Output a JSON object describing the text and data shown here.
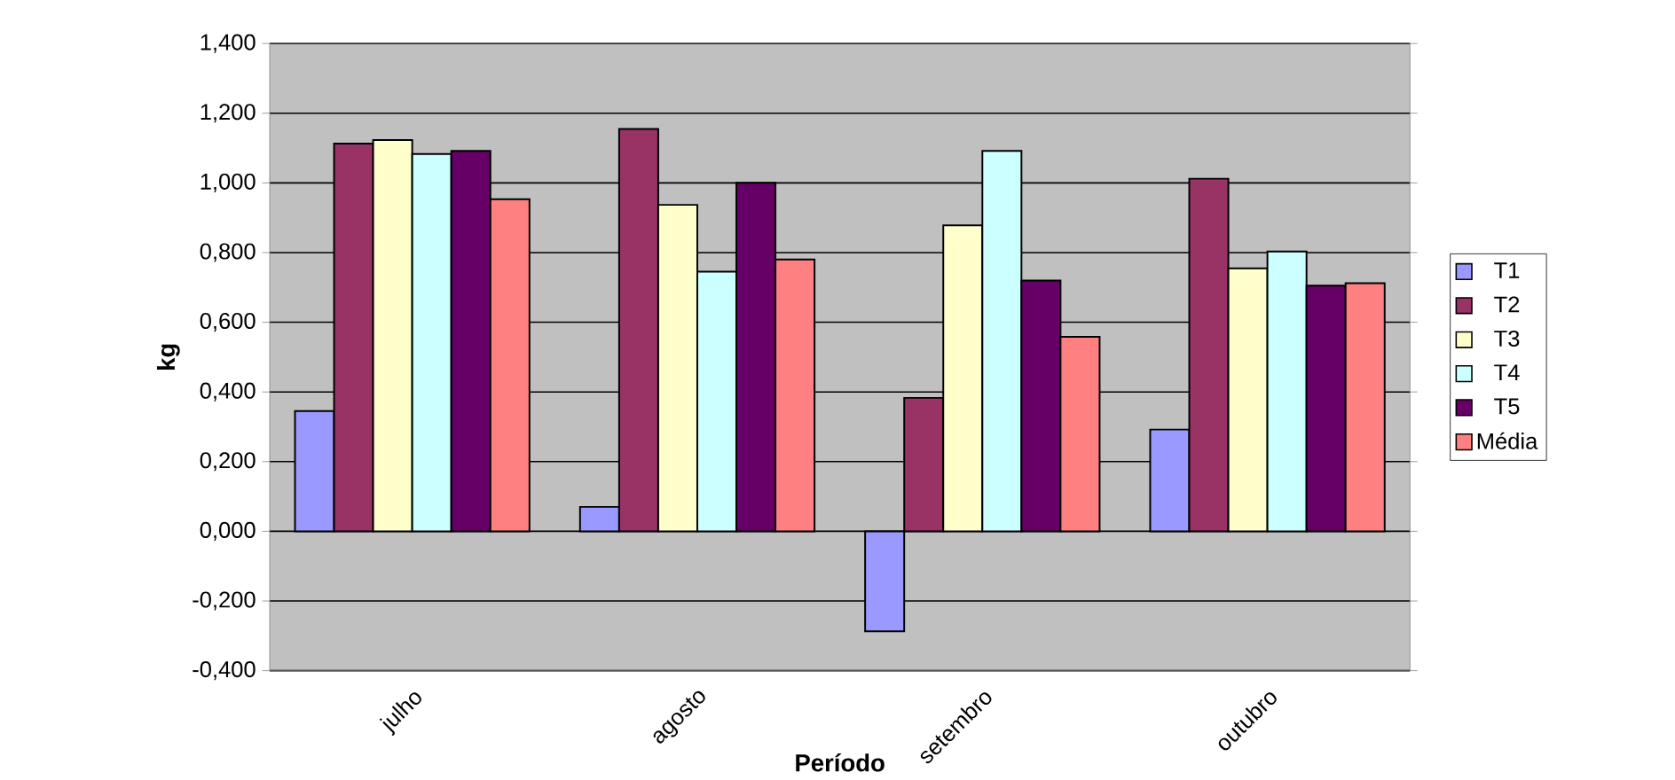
{
  "chart_data": {
    "type": "bar",
    "xlabel": "Período",
    "ylabel": "kg",
    "categories": [
      "julho",
      "agosto",
      "setembro",
      "outubro"
    ],
    "series": [
      {
        "name": "T1",
        "color": "#9999ff",
        "values": [
          0.345,
          0.07,
          -0.287,
          0.292
        ]
      },
      {
        "name": "T2",
        "color": "#993366",
        "values": [
          1.113,
          1.155,
          0.383,
          1.012
        ]
      },
      {
        "name": "T3",
        "color": "#ffffcc",
        "values": [
          1.123,
          0.937,
          0.878,
          0.755
        ]
      },
      {
        "name": "T4",
        "color": "#ccffff",
        "values": [
          1.083,
          0.745,
          1.092,
          0.803
        ]
      },
      {
        "name": "T5",
        "color": "#660066",
        "values": [
          1.092,
          1.0,
          0.72,
          0.705
        ]
      },
      {
        "name": "Média",
        "color": "#ff8080",
        "values": [
          0.953,
          0.78,
          0.558,
          0.712
        ]
      }
    ],
    "ylim": [
      -0.4,
      1.4
    ],
    "yticks": [
      {
        "value": -0.4,
        "label": "-0,400"
      },
      {
        "value": -0.2,
        "label": "-0,200"
      },
      {
        "value": 0,
        "label": "0,000"
      },
      {
        "value": 0.2,
        "label": "0,200"
      },
      {
        "value": 0.4,
        "label": "0,400"
      },
      {
        "value": 0.6,
        "label": "0,600"
      },
      {
        "value": 0.8,
        "label": "0,800"
      },
      {
        "value": 1.0,
        "label": "1,000"
      },
      {
        "value": 1.2,
        "label": "1,200"
      },
      {
        "value": 1.4,
        "label": "1,400"
      }
    ],
    "grid": "y",
    "legend": "right"
  }
}
